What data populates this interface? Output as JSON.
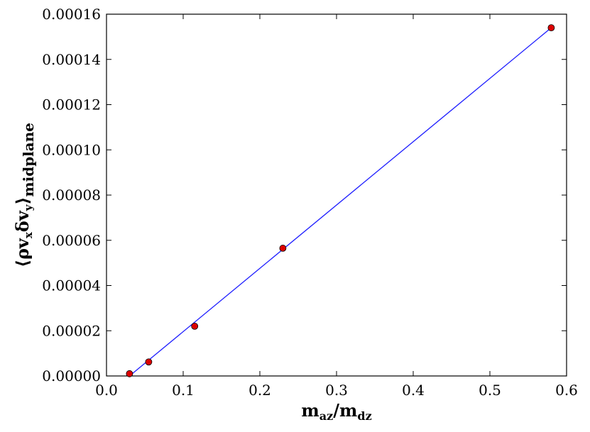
{
  "chart_data": {
    "type": "scatter",
    "x": [
      0.03,
      0.055,
      0.115,
      0.23,
      0.58
    ],
    "y": [
      1e-06,
      6.2e-06,
      2.2e-05,
      5.65e-05,
      0.000154
    ],
    "fit_line": {
      "x": [
        0.03,
        0.58
      ],
      "y": [
        0.0,
        0.000154
      ]
    },
    "xlim": [
      0.0,
      0.6
    ],
    "ylim": [
      0.0,
      0.00016
    ],
    "x_ticks": [
      "0.0",
      "0.1",
      "0.2",
      "0.3",
      "0.4",
      "0.5",
      "0.6"
    ],
    "y_ticks": [
      "0.00000",
      "0.00002",
      "0.00004",
      "0.00006",
      "0.00008",
      "0.00010",
      "0.00012",
      "0.00014",
      "0.00016"
    ],
    "xlabel": {
      "main_1": "m",
      "sub_1": "az",
      "slash": "/",
      "main_2": "m",
      "sub_2": "dz"
    },
    "ylabel": {
      "open": "⟨ρv",
      "sub_x": "x",
      "mid": "δv",
      "sub_y": "y",
      "close": "⟩",
      "sub": "midplane"
    },
    "grid": false,
    "colors": {
      "points": "#dd0000",
      "point_edge": "#000000",
      "line": "#1f1fff"
    }
  }
}
